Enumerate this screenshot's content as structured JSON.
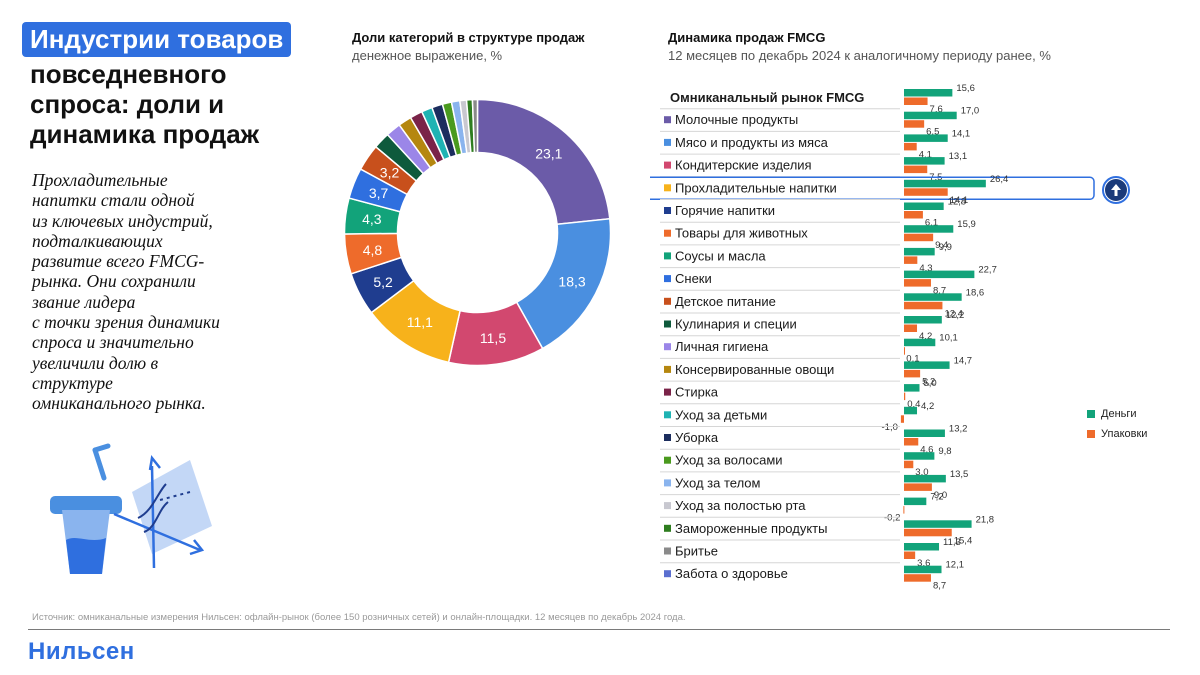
{
  "header": {
    "title_highlight": "Индустрии товаров",
    "title_rest": "повседневного\nспроса: доли и\nдинамика продаж"
  },
  "lead_text": "Прохладительные\nнапитки стали одной\nиз ключевых индустрий,\nподталкивающих\nразвитие всего FMCG-\nрынка. Они сохранили\nзвание лидера\nс точки зрения динамики\nспроса и значительно\nувеличили долю в\nструктуре\nомниканального рынка.",
  "source": "Источник: омниканальные измерения Нильсен: офлайн-рынок (более 150 розничных сетей) и онлайн-площадки. 12 месяцев по декабрь 2024 года.",
  "brand": "Нильсен",
  "illustration_icons": [
    "drink-cup-icon",
    "growth-chart-icon"
  ],
  "colors": {
    "accent": "#2f6fdf",
    "money": "#12a37a",
    "packs": "#ee6b2b"
  },
  "chart_data": [
    {
      "type": "pie",
      "title": "Доли категорий в структуре продаж",
      "subtitle": "денежное выражение, %",
      "values": [
        23.1,
        18.3,
        11.5,
        11.1,
        5.2,
        4.8,
        4.3,
        3.7,
        3.2,
        2.0,
        1.8,
        1.6,
        1.5,
        1.3,
        1.3,
        1.1,
        1.0,
        0.8,
        0.7,
        0.6
      ],
      "labels": [
        "23,1",
        "18,3",
        "11,5",
        "11,1",
        "5,2",
        "4,8",
        "4,3",
        "3,7",
        "3,2",
        "",
        "",
        "",
        "",
        "",
        "",
        "",
        "",
        "",
        "",
        ""
      ],
      "colors": [
        "#6b5ba8",
        "#4a8fe0",
        "#d2486f",
        "#f7b21b",
        "#1f3d8f",
        "#ee6b2b",
        "#12a37a",
        "#2f6fdf",
        "#c8501c",
        "#0e5a3c",
        "#9b86e8",
        "#b5870f",
        "#7a2348",
        "#1fb3b3",
        "#1c2d5e",
        "#4a9a1e",
        "#8ab4ee",
        "#c8c8d0",
        "#2e7d1f",
        "#8a8a8a"
      ]
    },
    {
      "type": "bar",
      "title": "Динамика продаж FMCG",
      "subtitle": "12 месяцев по декабрь 2024 к аналогичному периоду ранее, %",
      "total_row": {
        "name": "Омниканальный рынок FMCG",
        "money": 15.6,
        "packs": 7.6,
        "money_label": "15,6",
        "packs_label": "7,6"
      },
      "highlight_category": "Прохладительные напитки",
      "xlim": [
        -2,
        30
      ],
      "series": [
        {
          "name": "Деньги",
          "color": "#12a37a"
        },
        {
          "name": "Упаковки",
          "color": "#ee6b2b"
        }
      ],
      "categories": [
        {
          "name": "Молочные продукты",
          "color": "#6b5ba8",
          "money": 17.0,
          "packs": 6.5,
          "money_label": "17,0",
          "packs_label": "6,5"
        },
        {
          "name": "Мясо и продукты из мяса",
          "color": "#4a8fe0",
          "money": 14.1,
          "packs": 4.1,
          "money_label": "14,1",
          "packs_label": "4,1"
        },
        {
          "name": "Кондитерские изделия",
          "color": "#d2486f",
          "money": 13.1,
          "packs": 7.5,
          "money_label": "13,1",
          "packs_label": "7,5"
        },
        {
          "name": "Прохладительные напитки",
          "color": "#f7b21b",
          "money": 26.4,
          "packs": 14.1,
          "money_label": "26,4",
          "packs_label": "14,1"
        },
        {
          "name": "Горячие напитки",
          "color": "#1f3d8f",
          "money": 12.8,
          "packs": 6.1,
          "money_label": "12,8",
          "packs_label": "6,1"
        },
        {
          "name": "Товары для животных",
          "color": "#ee6b2b",
          "money": 15.9,
          "packs": 9.4,
          "money_label": "15,9",
          "packs_label": "9,4"
        },
        {
          "name": "Соусы и масла",
          "color": "#12a37a",
          "money": 9.9,
          "packs": 4.3,
          "money_label": "9,9",
          "packs_label": "4,3"
        },
        {
          "name": "Снеки",
          "color": "#2f6fdf",
          "money": 22.7,
          "packs": 8.7,
          "money_label": "22,7",
          "packs_label": "8,7"
        },
        {
          "name": "Детское питание",
          "color": "#c8501c",
          "money": 18.6,
          "packs": 12.4,
          "money_label": "18,6",
          "packs_label": "12,4"
        },
        {
          "name": "Кулинария и специи",
          "color": "#0e5a3c",
          "money": 12.2,
          "packs": 4.2,
          "money_label": "12,2",
          "packs_label": "4,2"
        },
        {
          "name": "Личная гигиена",
          "color": "#9b86e8",
          "money": 10.1,
          "packs": 0.1,
          "money_label": "10,1",
          "packs_label": "0,1"
        },
        {
          "name": "Консервированные овощи",
          "color": "#b5870f",
          "money": 14.7,
          "packs": 5.2,
          "money_label": "14,7",
          "packs_label": "5,2"
        },
        {
          "name": "Стирка",
          "color": "#7a2348",
          "money": 5.0,
          "packs": 0.4,
          "money_label": "5,0",
          "packs_label": "0,4"
        },
        {
          "name": "Уход за детьми",
          "color": "#1fb3b3",
          "money": 4.2,
          "packs": -1.0,
          "money_label": "4,2",
          "packs_label": "-1,0"
        },
        {
          "name": "Уборка",
          "color": "#1c2d5e",
          "money": 13.2,
          "packs": 4.6,
          "money_label": "13,2",
          "packs_label": "4,6"
        },
        {
          "name": "Уход за волосами",
          "color": "#4a9a1e",
          "money": 9.8,
          "packs": 3.0,
          "money_label": "9,8",
          "packs_label": "3,0"
        },
        {
          "name": "Уход за телом",
          "color": "#8ab4ee",
          "money": 13.5,
          "packs": 9.0,
          "money_label": "13,5",
          "packs_label": "9,0"
        },
        {
          "name": "Уход за полостью рта",
          "color": "#c8c8d0",
          "money": 7.2,
          "packs": -0.2,
          "money_label": "7,2",
          "packs_label": "-0,2"
        },
        {
          "name": "Замороженные продукты",
          "color": "#2e7d1f",
          "money": 21.8,
          "packs": 15.4,
          "money_label": "21,8",
          "packs_label": "15,4"
        },
        {
          "name": "Бритье",
          "color": "#8a8a8a",
          "money": 11.3,
          "packs": 3.6,
          "money_label": "11,3",
          "packs_label": "3,6"
        },
        {
          "name": "Забота о здоровье",
          "color": "#5b6fd0",
          "money": 12.1,
          "packs": 8.7,
          "money_label": "12,1",
          "packs_label": "8,7"
        }
      ]
    }
  ]
}
